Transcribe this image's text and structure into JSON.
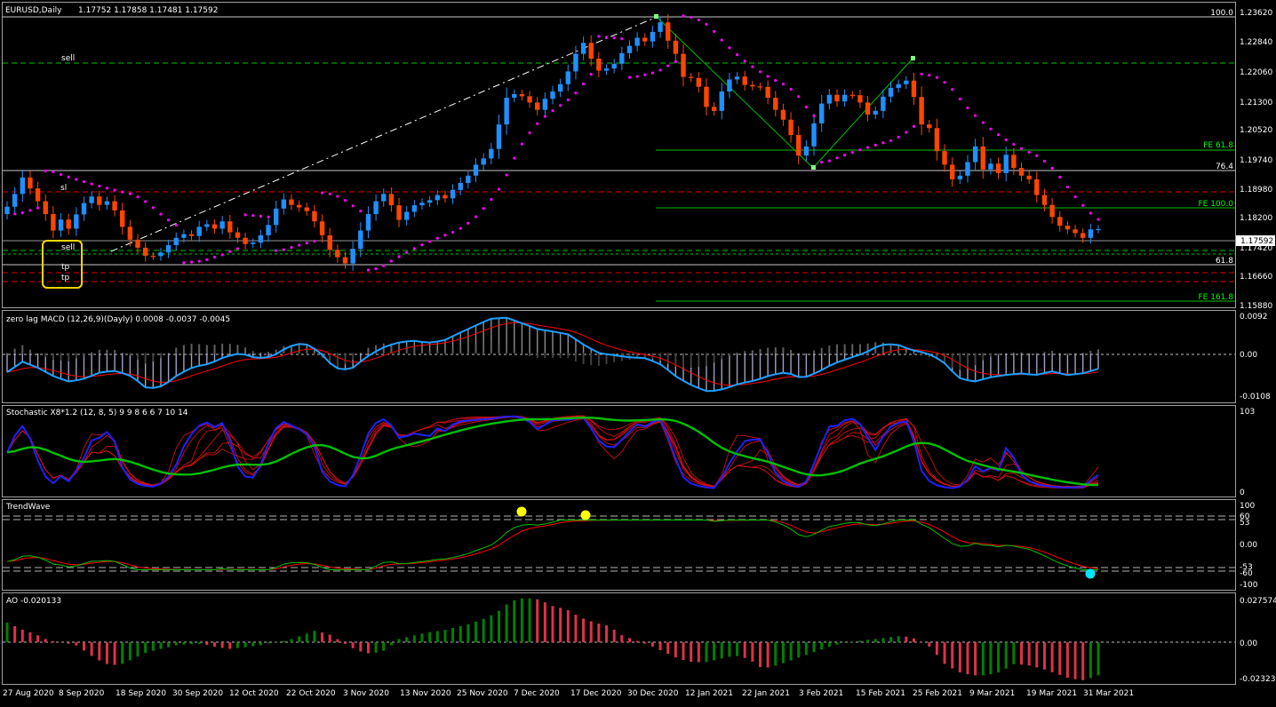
{
  "window": {
    "symbol_label": "EURUSD,Daily",
    "ohlc_label": "1.17752 1.17858 1.17481 1.17592"
  },
  "colors": {
    "background": "#000000",
    "bull_candle": "#1E90FF",
    "bear_candle": "#FF4500",
    "sar_dots": "#FF00FF",
    "fib_green": "#00FF00",
    "sell_line": "#00C000",
    "sl_line": "#FF0000",
    "macd_line": "#1EA0FF",
    "signal_line": "#FF0000",
    "ao_up": "#008000",
    "ao_down": "#E0304A",
    "stoch_fast": "#2020FF",
    "stoch_slow": "#00C000",
    "highlight_box": "#FFD700"
  },
  "chart_data": [
    {
      "type": "candlestick",
      "panel": "main",
      "title": "EURUSD,Daily",
      "ylim": [
        1.1545,
        1.2378
      ],
      "y_ticks": [
        "1.23620",
        "1.22840",
        "1.22060",
        "1.21300",
        "1.20520",
        "1.19740",
        "1.18980",
        "1.18200",
        "1.17420",
        "1.16660",
        "1.15880"
      ],
      "current_price": "1.17592",
      "levels": [
        {
          "label": "100.0",
          "price": 1.2362
        },
        {
          "label": "76.4",
          "price": 1.1948
        },
        {
          "label": "61.8",
          "price": 1.1719
        },
        {
          "label": "FE 61.8",
          "price": 1.1996
        },
        {
          "label": "FE 100.0",
          "price": 1.1845
        },
        {
          "label": "FE 161.8",
          "price": 1.16
        }
      ],
      "trade_labels": [
        "sell",
        "sl",
        "sell",
        "tp",
        "tp"
      ],
      "close_path": [
        1.182,
        1.1855,
        1.19,
        1.187,
        1.1835,
        1.18,
        1.1755,
        1.1785,
        1.176,
        1.1799,
        1.183,
        1.1848,
        1.1825,
        1.1835,
        1.181,
        1.1765,
        1.173,
        1.1708,
        1.1686,
        1.1685,
        1.1695,
        1.1715,
        1.1735,
        1.1745,
        1.174,
        1.1765,
        1.1772,
        1.176,
        1.178,
        1.175,
        1.1735,
        1.1718,
        1.1722,
        1.1742,
        1.177,
        1.1815,
        1.184,
        1.1825,
        1.1818,
        1.1808,
        1.178,
        1.1742,
        1.1702,
        1.1682,
        1.1665,
        1.1705,
        1.1755,
        1.18,
        1.1835,
        1.1855,
        1.1824,
        1.1784,
        1.1806,
        1.1824,
        1.1831,
        1.1838,
        1.1852,
        1.1843,
        1.1866,
        1.1885,
        1.1905,
        1.1935,
        1.1952,
        1.1978,
        1.2045,
        1.2118,
        1.2128,
        1.2122,
        1.2105,
        1.2085,
        1.2115,
        1.2135,
        1.2155,
        1.219,
        1.2238,
        1.2268,
        1.2225,
        1.2192,
        1.2198,
        1.2211,
        1.224,
        1.226,
        1.2282,
        1.2272,
        1.2298,
        1.2324,
        1.2274,
        1.2238,
        1.2175,
        1.2172,
        1.2148,
        1.2093,
        1.2082,
        1.2135,
        1.2168,
        1.2176,
        1.2153,
        1.2149,
        1.2148,
        1.2118,
        1.2085,
        1.2058,
        1.2016,
        1.196,
        1.1985,
        1.2048,
        1.2102,
        1.2126,
        1.2108,
        1.2126,
        1.2125,
        1.2105,
        1.2072,
        1.2082,
        1.2121,
        1.2145,
        1.2155,
        1.2165,
        1.212,
        1.2045,
        1.2035,
        1.1972,
        1.1935,
        1.1895,
        1.1905,
        1.1942,
        1.1985,
        1.1922,
        1.1938,
        1.1912,
        1.1962,
        1.1926,
        1.1905,
        1.1895,
        1.1852,
        1.1825,
        1.1792,
        1.1768,
        1.1758,
        1.1748,
        1.1735,
        1.1758,
        1.1759
      ]
    },
    {
      "type": "line",
      "panel": "macd",
      "title": "zero lag MACD (12,26,9)(Dayly) 0.0008 -0.0037 -0.0045",
      "ylim": [
        -0.0117,
        0.0101
      ],
      "y_ticks": [
        "0.0092",
        "0.00",
        "-0.0108"
      ],
      "macd_path": [
        -0.0045,
        -0.002,
        -0.0035,
        -0.0055,
        -0.0068,
        -0.006,
        -0.0045,
        -0.0042,
        -0.0055,
        -0.0085,
        -0.0078,
        -0.005,
        -0.0032,
        -0.0025,
        -0.0008,
        0.0,
        -0.0012,
        -0.0008,
        0.0015,
        0.0025,
        0.0005,
        -0.0035,
        -0.004,
        -0.001,
        0.0012,
        0.0025,
        0.003,
        0.0025,
        0.003,
        0.0048,
        0.0065,
        0.0082,
        0.0085,
        0.0072,
        0.0058,
        0.0052,
        0.0045,
        0.002,
        0.0,
        -0.0005,
        -0.001,
        -0.0012,
        -0.0028,
        -0.0058,
        -0.0078,
        -0.0092,
        -0.0085,
        -0.0072,
        -0.0065,
        -0.0052,
        -0.0045,
        -0.006,
        -0.0045,
        -0.0025,
        -0.0012,
        0.0,
        0.002,
        0.0022,
        0.0008,
        0.0,
        -0.0018,
        -0.0058,
        -0.0068,
        -0.0058,
        -0.0052,
        -0.0048,
        -0.0052,
        -0.0043,
        -0.0052,
        -0.0048,
        -0.0037
      ]
    },
    {
      "type": "line",
      "panel": "stochastic",
      "title": "Stochastic X8*1.2 (12, 8, 5) 9 9 8 6 6 7 10 14",
      "ylim": [
        0,
        103
      ],
      "y_ticks": [
        "103",
        "0"
      ]
    },
    {
      "type": "line",
      "panel": "trendwave",
      "title": "TrendWave",
      "ylim": [
        -112,
        112
      ],
      "y_ticks": [
        "100",
        "60",
        "53",
        "0.00",
        "-53",
        "-60",
        "-100"
      ]
    },
    {
      "type": "bar",
      "panel": "ao",
      "title": "AO -0.020133",
      "ylim": [
        -0.0252,
        0.0297
      ],
      "y_ticks": [
        "0.027574",
        "0.00",
        "-0.02323"
      ],
      "values_path": [
        0.012,
        0.008,
        0.005,
        0.001,
        0.0,
        -0.002,
        -0.008,
        -0.013,
        -0.014,
        -0.01,
        -0.006,
        -0.004,
        -0.002,
        -0.001,
        -0.001,
        -0.003,
        -0.004,
        -0.003,
        -0.002,
        0.0,
        0.001,
        0.004,
        0.007,
        0.005,
        0.0,
        -0.005,
        -0.007,
        -0.005,
        0.002,
        0.004,
        0.006,
        0.007,
        0.009,
        0.011,
        0.014,
        0.018,
        0.025,
        0.027,
        0.026,
        0.022,
        0.02,
        0.015,
        0.012,
        0.01,
        0.004,
        0.001,
        -0.002,
        -0.006,
        -0.01,
        -0.012,
        -0.012,
        -0.01,
        -0.008,
        -0.01,
        -0.016,
        -0.014,
        -0.011,
        -0.008,
        -0.005,
        -0.002,
        0.0,
        0.001,
        0.002,
        0.003,
        0.004,
        0.002,
        -0.003,
        -0.013,
        -0.018,
        -0.02,
        -0.02,
        -0.018,
        -0.013,
        -0.014,
        -0.016,
        -0.019,
        -0.022,
        -0.023,
        -0.02
      ]
    }
  ],
  "x_axis_dates": [
    "27 Aug 2020",
    "8 Sep 2020",
    "18 Sep 2020",
    "30 Sep 2020",
    "12 Oct 2020",
    "22 Oct 2020",
    "3 Nov 2020",
    "13 Nov 2020",
    "25 Nov 2020",
    "7 Dec 2020",
    "17 Dec 2020",
    "30 Dec 2020",
    "12 Jan 2021",
    "22 Jan 2021",
    "3 Feb 2021",
    "15 Feb 2021",
    "25 Feb 2021",
    "9 Mar 2021",
    "19 Mar 2021",
    "31 Mar 2021"
  ]
}
